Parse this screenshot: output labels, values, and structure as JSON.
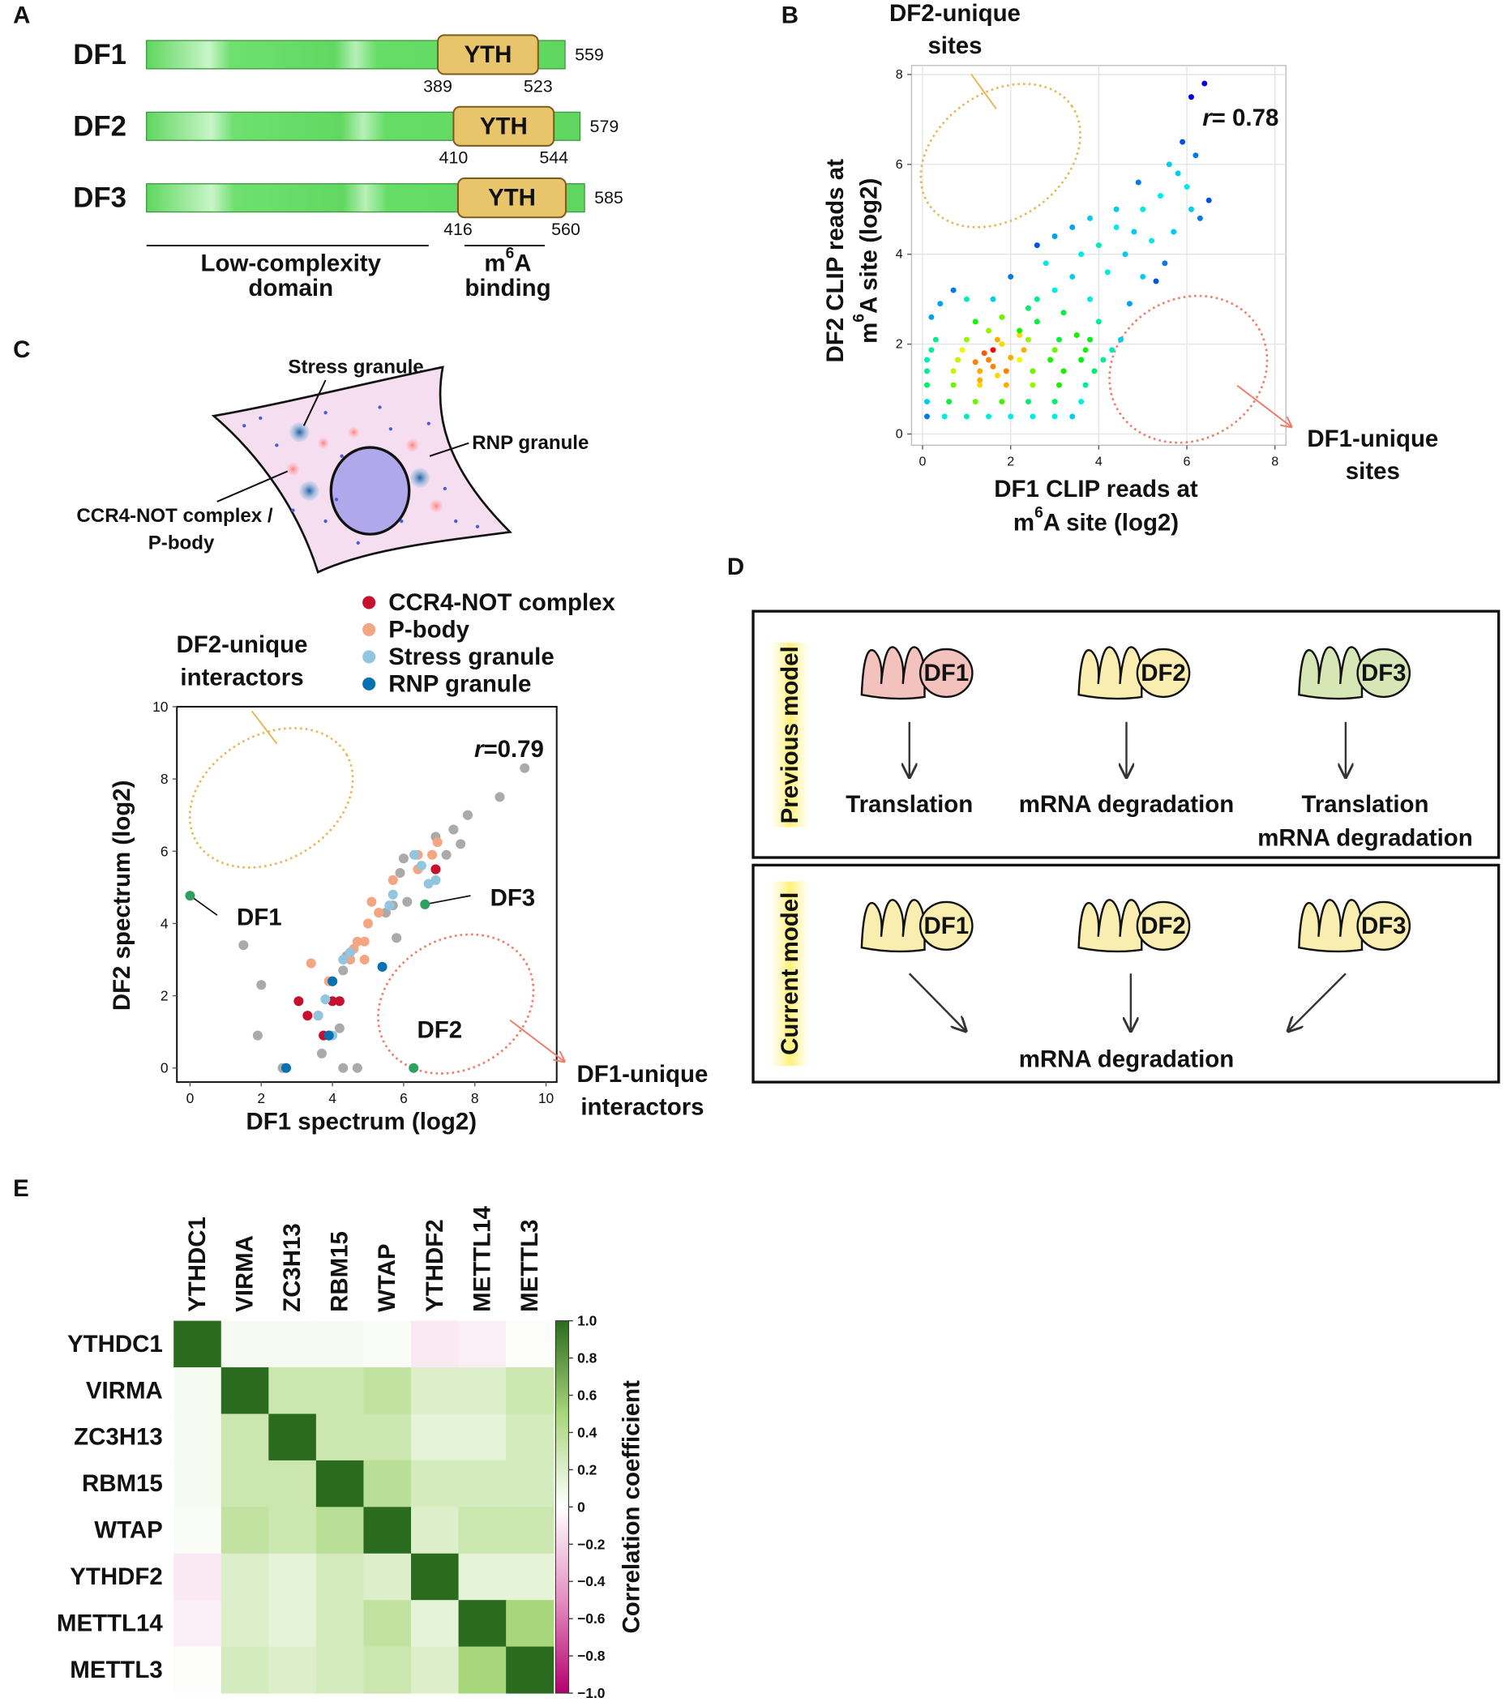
{
  "panel_labels": [
    "A",
    "B",
    "C",
    "D",
    "E"
  ],
  "panel_a": {
    "proteins": [
      {
        "name": "DF1",
        "length": 559,
        "yth_start": 389,
        "yth_end": 523
      },
      {
        "name": "DF2",
        "length": 579,
        "yth_start": 410,
        "yth_end": 544
      },
      {
        "name": "DF3",
        "length": 585,
        "yth_start": 416,
        "yth_end": 560
      }
    ],
    "domain_label": "YTH",
    "regions": [
      {
        "lines": [
          [
            "Low-complexity"
          ],
          [
            "domain"
          ]
        ]
      },
      {
        "lines": [
          [
            "m",
            "6",
            "A"
          ],
          [
            "binding"
          ]
        ]
      }
    ]
  },
  "panel_c_cell": {
    "stress_granule": "Stress granule",
    "rnp_granule": "RNP granule",
    "pbody_lines": [
      "CCR4-NOT complex /",
      "P-body"
    ]
  },
  "panel_d": {
    "models": [
      {
        "name": "Previous model",
        "proteins": [
          {
            "name": "DF1",
            "color": "#f4c2bc",
            "outcome": [
              "Translation"
            ]
          },
          {
            "name": "DF2",
            "color": "#f9eeb0",
            "outcome": [
              "mRNA degradation"
            ]
          },
          {
            "name": "DF3",
            "color": "#d6e6b4",
            "outcome": [
              "Translation",
              "mRNA degradation"
            ]
          }
        ]
      },
      {
        "name": "Current model",
        "proteins": [
          {
            "name": "DF1",
            "color": "#f9eeb0"
          },
          {
            "name": "DF2",
            "color": "#f9eeb0"
          },
          {
            "name": "DF3",
            "color": "#f9eeb0"
          }
        ],
        "outcome": "mRNA degradation"
      }
    ]
  },
  "chart_data": [
    {
      "type": "scatter",
      "color_by": "density",
      "grid": true,
      "xlabel_lines": [
        [
          "DF1 CLIP reads at"
        ],
        [
          "m",
          "6",
          "A site (log2)"
        ]
      ],
      "ylabel_lines": [
        [
          "DF2 CLIP reads at"
        ],
        [
          "m",
          "6",
          "A site (log2)"
        ]
      ],
      "r_symbol": "r",
      "r_text": "= 0.78",
      "regions": [
        {
          "lines": [
            "DF2-unique",
            "sites"
          ],
          "color": "#e8b85a"
        },
        {
          "lines": [
            "DF1-unique",
            "sites"
          ],
          "color": "#f07f6e"
        }
      ],
      "xlim": [
        -0.25,
        8.25
      ],
      "ylim": [
        -0.25,
        8.2
      ],
      "xticks": [
        0,
        2,
        4,
        6,
        8
      ],
      "yticks": [
        0,
        2,
        4,
        6,
        8
      ],
      "x": [
        0.1,
        0.5,
        1.0,
        1.5,
        2.0,
        2.5,
        3.0,
        3.4,
        0.1,
        0.6,
        1.2,
        1.8,
        2.4,
        3.0,
        3.6,
        0.1,
        0.7,
        1.3,
        1.9,
        2.5,
        3.1,
        3.7,
        0.1,
        0.7,
        1.3,
        1.9,
        2.5,
        3.2,
        3.9,
        0.1,
        0.8,
        1.5,
        2.2,
        2.9,
        3.6,
        4.1,
        0.2,
        0.9,
        1.6,
        2.3,
        3.0,
        3.7,
        4.3,
        0.3,
        1.0,
        1.7,
        2.4,
        3.1,
        3.8,
        4.5,
        1.4,
        1.6,
        1.8,
        2.0,
        1.2,
        2.2,
        1.5,
        2.6,
        1.3,
        1.7,
        1.2,
        1.8,
        2.4,
        2.6,
        2.2,
        3.0,
        3.4,
        2.8,
        3.6,
        4.0,
        4.4,
        3.2,
        3.8,
        4.2,
        4.8,
        5.0,
        5.4,
        5.8,
        6.0,
        6.2,
        6.4,
        5.6,
        6.5,
        6.3,
        5.0,
        5.3,
        4.6,
        4.4,
        3.8,
        3.0,
        2.0,
        1.6,
        0.2,
        0.4,
        0.7,
        1.0,
        2.6,
        3.4,
        4.9,
        5.9,
        6.1,
        5.2,
        4.7,
        5.5,
        6.1,
        5.7,
        4.0,
        3.5
      ],
      "values": [
        0.39,
        0.39,
        0.39,
        0.39,
        0.39,
        0.39,
        0.39,
        0.39,
        0.72,
        0.72,
        0.72,
        0.72,
        0.72,
        0.72,
        0.72,
        1.09,
        1.09,
        1.09,
        1.09,
        1.09,
        1.09,
        1.09,
        1.4,
        1.4,
        1.4,
        1.4,
        1.4,
        1.4,
        1.4,
        1.65,
        1.65,
        1.65,
        1.65,
        1.65,
        1.65,
        1.65,
        1.87,
        1.87,
        1.87,
        1.87,
        1.87,
        1.87,
        1.87,
        2.1,
        2.1,
        2.1,
        2.1,
        2.1,
        2.1,
        2.1,
        1.8,
        1.5,
        2.0,
        1.7,
        1.6,
        2.2,
        2.3,
        2.5,
        1.2,
        1.3,
        2.5,
        2.6,
        2.8,
        3.0,
        2.3,
        3.2,
        3.5,
        3.8,
        4.0,
        4.2,
        4.6,
        2.7,
        3.0,
        3.6,
        4.5,
        5.0,
        5.3,
        5.8,
        5.5,
        6.2,
        7.8,
        6.0,
        5.2,
        4.8,
        3.5,
        3.4,
        4.0,
        5.0,
        4.8,
        4.4,
        3.5,
        3.0,
        2.6,
        2.9,
        3.2,
        3.0,
        4.2,
        4.6,
        5.6,
        6.5,
        7.5,
        4.3,
        2.9,
        3.8,
        5.0,
        4.5,
        2.5,
        2.2
      ]
    },
    {
      "type": "scatter",
      "grid": false,
      "xlabel_lines": [
        [
          "DF1 spectrum (log2)"
        ]
      ],
      "ylabel_lines": [
        [
          "DF2 spectrum (log2)"
        ]
      ],
      "r_symbol": "r",
      "r_text": "=0.79",
      "regions": [
        {
          "lines": [
            "DF2-unique",
            "interactors"
          ],
          "color": "#e8b85a"
        },
        {
          "lines": [
            "DF1-unique",
            "interactors"
          ],
          "color": "#f07f6e"
        }
      ],
      "xlim": [
        -0.37,
        10.3
      ],
      "ylim": [
        -0.39,
        10
      ],
      "xticks": [
        0,
        2,
        4,
        6,
        8,
        10
      ],
      "yticks": [
        0,
        2,
        4,
        6,
        8,
        10
      ],
      "series": [
        {
          "color": "#aaaaaa",
          "x": [
            9.4,
            8.7,
            7.8,
            7.4,
            7.6,
            7.2,
            6.9,
            6.0,
            5.9,
            5.7,
            5.5,
            1.5,
            2.0,
            1.9,
            2.6,
            4.3,
            4.7,
            4.2,
            4.4,
            4.3,
            5.8,
            3.7,
            6.1
          ],
          "values": [
            8.3,
            7.5,
            7.0,
            6.6,
            6.2,
            5.9,
            6.4,
            5.8,
            5.4,
            4.5,
            4.3,
            3.4,
            2.3,
            0.9,
            0.0,
            0.0,
            0.0,
            1.1,
            3.1,
            2.7,
            3.6,
            0.4,
            4.6
          ]
        },
        {
          "name": "CCR4-NOT complex",
          "color": "#c8102e",
          "x": [
            6.9,
            3.05,
            3.3,
            3.75,
            4.0,
            4.0,
            4.2,
            3.6,
            3.9
          ],
          "values": [
            5.5,
            1.85,
            1.45,
            0.9,
            2.4,
            1.85,
            1.85,
            1.45,
            0.9
          ]
        },
        {
          "name": "P-body",
          "color": "#f4a582",
          "x": [
            6.95,
            6.8,
            6.4,
            6.4,
            5.7,
            5.3,
            5.1,
            5.0,
            4.9,
            4.7,
            4.6,
            4.9,
            4.5,
            3.4,
            3.9
          ],
          "values": [
            6.25,
            5.9,
            5.9,
            5.5,
            5.2,
            4.3,
            4.6,
            4.0,
            3.5,
            3.5,
            3.3,
            3.0,
            3.0,
            2.9,
            2.4
          ]
        },
        {
          "name": "Stress granule",
          "color": "#92c5de",
          "x": [
            6.3,
            6.9,
            6.7,
            6.5,
            5.6,
            5.7,
            4.5,
            4.3,
            3.8,
            3.6,
            4.0
          ],
          "values": [
            5.9,
            5.2,
            5.1,
            5.6,
            4.5,
            4.8,
            3.2,
            3.0,
            1.9,
            1.45,
            0.9
          ]
        },
        {
          "name": "RNP granule",
          "color": "#0571b0",
          "x": [
            5.4,
            4.0,
            2.7,
            3.9
          ],
          "values": [
            2.8,
            2.4,
            0,
            0.9
          ]
        }
      ],
      "annotation_color": "#2ca25f",
      "annotations": [
        {
          "text": "DF1",
          "x": 0,
          "y": 4.77
        },
        {
          "text": "DF3",
          "x": 6.6,
          "y": 4.53
        },
        {
          "text": "DF2",
          "x": 6.28,
          "y": 0
        }
      ]
    },
    {
      "type": "heatmap",
      "categories": [
        "YTHDC1",
        "VIRMA",
        "ZC3H13",
        "RBM15",
        "WTAP",
        "YTHDF2",
        "METTL14",
        "METTL3"
      ],
      "label_colors": [
        "#1e8fad",
        "#111111",
        "#111111",
        "#111111",
        "#111111",
        "#c9a21a",
        "#111111",
        "#111111"
      ],
      "matrix": [
        [
          1,
          0.05,
          0.05,
          0.05,
          0.03,
          -0.1,
          -0.07,
          0.02
        ],
        [
          0.05,
          1,
          0.3,
          0.3,
          0.35,
          0.2,
          0.2,
          0.3
        ],
        [
          0.05,
          0.3,
          1,
          0.3,
          0.3,
          0.15,
          0.15,
          0.25
        ],
        [
          0.05,
          0.3,
          0.3,
          1,
          0.4,
          0.25,
          0.25,
          0.25
        ],
        [
          0.03,
          0.35,
          0.3,
          0.4,
          1,
          0.2,
          0.3,
          0.3
        ],
        [
          -0.1,
          0.2,
          0.15,
          0.25,
          0.2,
          1,
          0.15,
          0.15
        ],
        [
          -0.07,
          0.2,
          0.15,
          0.25,
          0.35,
          0.15,
          1,
          0.5
        ],
        [
          0.02,
          0.25,
          0.2,
          0.25,
          0.3,
          0.2,
          0.5,
          1
        ]
      ],
      "zlim": [
        -1,
        1
      ],
      "colors": [
        "#b5006f",
        "#e58fc0",
        "#ffffff",
        "#a8d67a",
        "#2b6b1f"
      ],
      "colorbar_label": "Correlation coefficient",
      "colorbar_ticks": [
        {
          "value": 1,
          "label": "1.0"
        },
        0.8,
        0.6,
        0.4,
        0.2,
        0,
        {
          "value": -0.2,
          "label": "−0.2"
        },
        {
          "value": -0.4,
          "label": "−0.4"
        },
        {
          "value": -0.6,
          "label": "−0.6"
        },
        {
          "value": -0.8,
          "label": "−0.8"
        },
        {
          "value": -1,
          "label": "−1.0"
        }
      ]
    }
  ]
}
